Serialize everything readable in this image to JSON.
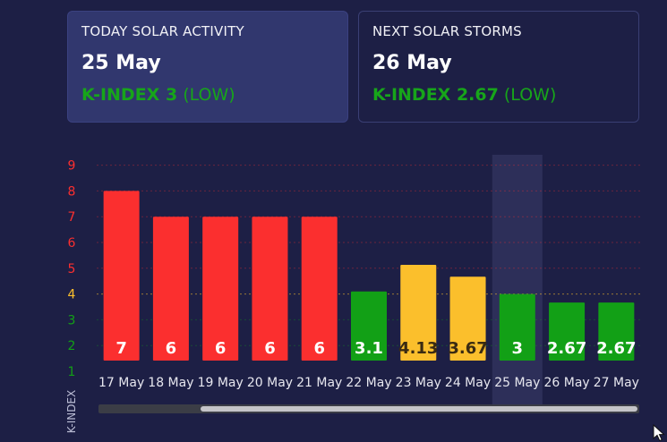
{
  "today_card": {
    "title": "TODAY SOLAR ACTIVITY",
    "date": "25 May",
    "kindex_label": "K-INDEX 3",
    "level": "(LOW)"
  },
  "next_card": {
    "title": "NEXT SOLAR STORMS",
    "date": "26 May",
    "kindex_label": "K-INDEX 2.67",
    "level": "(LOW)"
  },
  "colors": {
    "background": "#1d1f45",
    "high": "#fb2f2f",
    "moderate": "#fbbf2c",
    "low": "#12a016",
    "highlight_column": "#2d2f59"
  },
  "chart_data": {
    "type": "bar",
    "ylabel": "K-INDEX",
    "ylim": [
      1,
      9
    ],
    "yticks": [
      "1",
      "2",
      "3",
      "4",
      "5",
      "6",
      "7",
      "8",
      "9"
    ],
    "categories": [
      "17 May",
      "18 May",
      "19 May",
      "20 May",
      "21 May",
      "22 May",
      "23 May",
      "24 May",
      "25 May",
      "26 May",
      "27 May"
    ],
    "values": [
      7,
      6,
      6,
      6,
      6,
      3.1,
      4.13,
      3.67,
      3,
      2.67,
      2.67
    ],
    "display_values": [
      7,
      6,
      6,
      6,
      6,
      3.1,
      4.13,
      3.67,
      3,
      2.67,
      2.67
    ],
    "levels": [
      "high",
      "high",
      "high",
      "high",
      "high",
      "low",
      "moderate",
      "moderate",
      "low",
      "low",
      "low"
    ],
    "highlighted_category": "25 May",
    "grid": true
  }
}
